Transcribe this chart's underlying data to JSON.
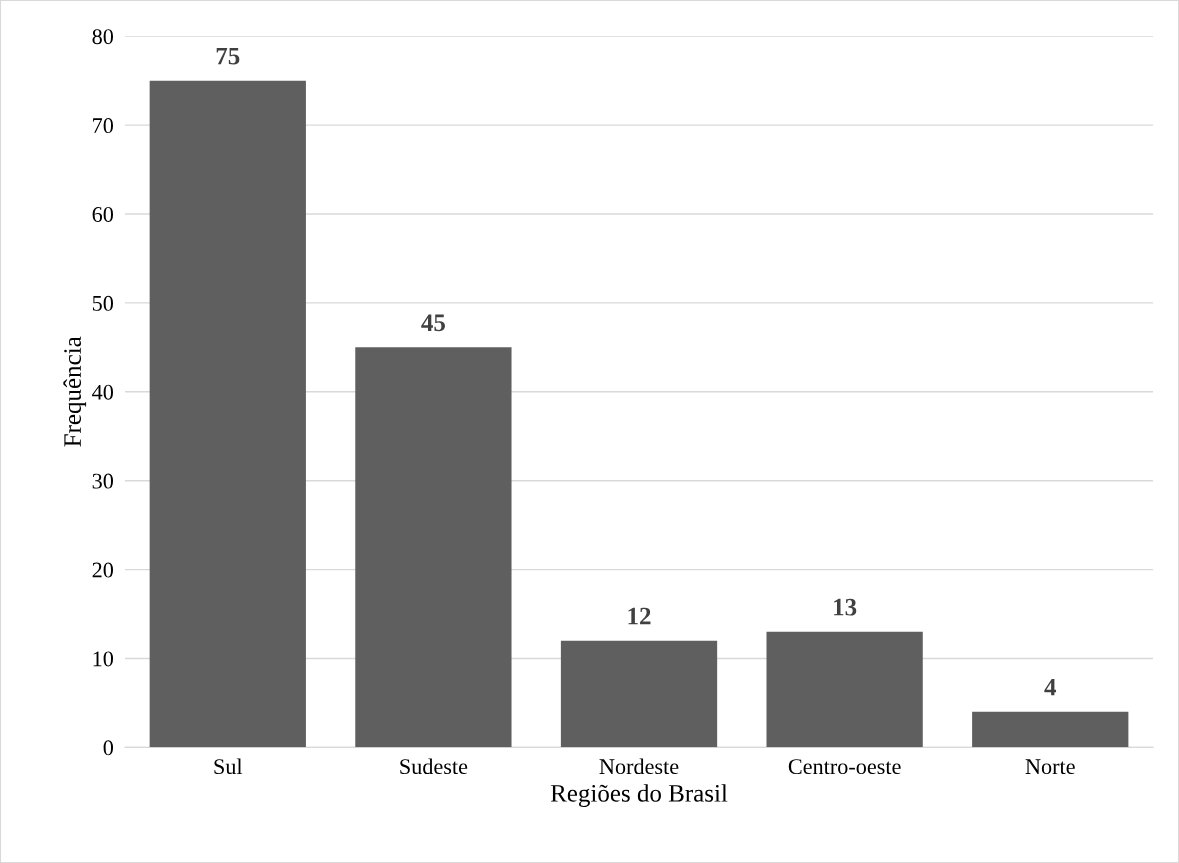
{
  "chart_data": {
    "type": "bar",
    "xlabel": "Regiões do Brasil",
    "ylabel": "Frequência",
    "categories": [
      "Sul",
      "Sudeste",
      "Nordeste",
      "Centro-oeste",
      "Norte"
    ],
    "values": [
      75,
      45,
      12,
      13,
      4
    ],
    "color": "#5f5f5f",
    "ylim": [
      0,
      80
    ],
    "yticks": [
      0,
      10,
      20,
      30,
      40,
      50,
      60,
      70,
      80
    ],
    "grid": "y",
    "data_labels": true,
    "legend": false
  }
}
